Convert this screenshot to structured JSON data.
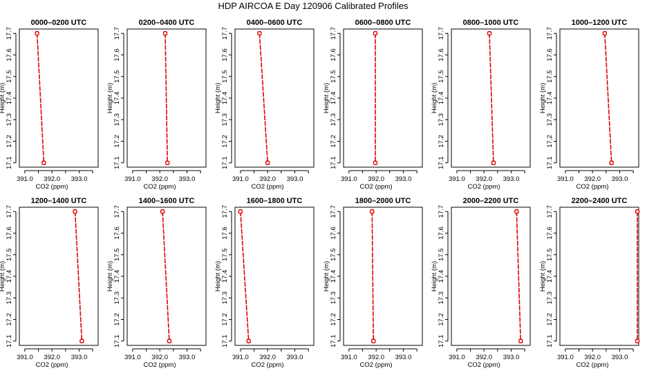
{
  "figure": {
    "title": "HDP AIRCOA E  Day 120906  Calibrated Profiles"
  },
  "colors": {
    "series": "#dd0000",
    "axes": "#000000",
    "background": "#ffffff"
  },
  "chart_data": [
    {
      "type": "line",
      "title": "0000–0200 UTC",
      "xlabel": "CO2 (ppm)",
      "ylabel": "Height (m)",
      "xlim": [
        390.8,
        393.7
      ],
      "ylim": [
        17.08,
        17.72
      ],
      "xticks": [
        "391.0",
        "392.0",
        "393.0"
      ],
      "yticks": [
        "17.1",
        "17.2",
        "17.3",
        "17.4",
        "17.5",
        "17.6",
        "17.7"
      ],
      "series": [
        {
          "x": [
            391.45,
            391.7
          ],
          "y": [
            17.7,
            17.1
          ]
        }
      ],
      "grid": false
    },
    {
      "type": "line",
      "title": "0200–0400 UTC",
      "xlabel": "CO2 (ppm)",
      "ylabel": "Height (m)",
      "xlim": [
        390.8,
        393.7
      ],
      "ylim": [
        17.08,
        17.72
      ],
      "xticks": [
        "391.0",
        "392.0",
        "393.0"
      ],
      "yticks": [
        "17.1",
        "17.2",
        "17.3",
        "17.4",
        "17.5",
        "17.6",
        "17.7"
      ],
      "series": [
        {
          "x": [
            392.2,
            392.28
          ],
          "y": [
            17.7,
            17.1
          ]
        }
      ],
      "grid": false
    },
    {
      "type": "line",
      "title": "0400–0600 UTC",
      "xlabel": "CO2 (ppm)",
      "ylabel": "Height (m)",
      "xlim": [
        390.8,
        393.7
      ],
      "ylim": [
        17.08,
        17.72
      ],
      "xticks": [
        "391.0",
        "392.0",
        "393.0"
      ],
      "yticks": [
        "17.1",
        "17.2",
        "17.3",
        "17.4",
        "17.5",
        "17.6",
        "17.7"
      ],
      "series": [
        {
          "x": [
            391.7,
            392.0
          ],
          "y": [
            17.7,
            17.1
          ]
        }
      ],
      "grid": false
    },
    {
      "type": "line",
      "title": "0600–0800 UTC",
      "xlabel": "CO2 (ppm)",
      "ylabel": "Height (m)",
      "xlim": [
        390.8,
        393.7
      ],
      "ylim": [
        17.08,
        17.72
      ],
      "xticks": [
        "391.0",
        "392.0",
        "393.0"
      ],
      "yticks": [
        "17.1",
        "17.2",
        "17.3",
        "17.4",
        "17.5",
        "17.6",
        "17.7"
      ],
      "series": [
        {
          "x": [
            391.97,
            391.97
          ],
          "y": [
            17.7,
            17.1
          ]
        }
      ],
      "grid": false
    },
    {
      "type": "line",
      "title": "0800–1000 UTC",
      "xlabel": "CO2 (ppm)",
      "ylabel": "Height (m)",
      "xlim": [
        390.8,
        393.7
      ],
      "ylim": [
        17.08,
        17.72
      ],
      "xticks": [
        "391.0",
        "392.0",
        "393.0"
      ],
      "yticks": [
        "17.1",
        "17.2",
        "17.3",
        "17.4",
        "17.5",
        "17.6",
        "17.7"
      ],
      "series": [
        {
          "x": [
            392.2,
            392.35
          ],
          "y": [
            17.7,
            17.1
          ]
        }
      ],
      "grid": false
    },
    {
      "type": "line",
      "title": "1000–1200 UTC",
      "xlabel": "CO2 (ppm)",
      "ylabel": "Height (m)",
      "xlim": [
        390.8,
        393.7
      ],
      "ylim": [
        17.08,
        17.72
      ],
      "xticks": [
        "391.0",
        "392.0",
        "393.0"
      ],
      "yticks": [
        "17.1",
        "17.2",
        "17.3",
        "17.4",
        "17.5",
        "17.6",
        "17.7"
      ],
      "series": [
        {
          "x": [
            392.45,
            392.7
          ],
          "y": [
            17.7,
            17.1
          ]
        }
      ],
      "grid": false
    },
    {
      "type": "line",
      "title": "1200–1400 UTC",
      "xlabel": "CO2 (ppm)",
      "ylabel": "Height (m)",
      "xlim": [
        390.8,
        393.7
      ],
      "ylim": [
        17.08,
        17.72
      ],
      "xticks": [
        "391.0",
        "392.0",
        "393.0"
      ],
      "yticks": [
        "17.1",
        "17.2",
        "17.3",
        "17.4",
        "17.5",
        "17.6",
        "17.7"
      ],
      "series": [
        {
          "x": [
            392.85,
            393.1
          ],
          "y": [
            17.7,
            17.1
          ]
        }
      ],
      "grid": false
    },
    {
      "type": "line",
      "title": "1400–1600 UTC",
      "xlabel": "CO2 (ppm)",
      "ylabel": "Height (m)",
      "xlim": [
        390.8,
        393.7
      ],
      "ylim": [
        17.08,
        17.72
      ],
      "xticks": [
        "391.0",
        "392.0",
        "393.0"
      ],
      "yticks": [
        "17.1",
        "17.2",
        "17.3",
        "17.4",
        "17.5",
        "17.6",
        "17.7"
      ],
      "series": [
        {
          "x": [
            392.1,
            392.35
          ],
          "y": [
            17.7,
            17.1
          ]
        }
      ],
      "grid": false
    },
    {
      "type": "line",
      "title": "1600–1800 UTC",
      "xlabel": "CO2 (ppm)",
      "ylabel": "Height (m)",
      "xlim": [
        390.8,
        393.7
      ],
      "ylim": [
        17.08,
        17.72
      ],
      "xticks": [
        "391.0",
        "392.0",
        "393.0"
      ],
      "yticks": [
        "17.1",
        "17.2",
        "17.3",
        "17.4",
        "17.5",
        "17.6",
        "17.7"
      ],
      "series": [
        {
          "x": [
            391.0,
            391.3
          ],
          "y": [
            17.7,
            17.1
          ]
        }
      ],
      "grid": false
    },
    {
      "type": "line",
      "title": "1800–2000 UTC",
      "xlabel": "CO2 (ppm)",
      "ylabel": "Height (m)",
      "xlim": [
        390.8,
        393.7
      ],
      "ylim": [
        17.08,
        17.72
      ],
      "xticks": [
        "391.0",
        "392.0",
        "393.0"
      ],
      "yticks": [
        "17.1",
        "17.2",
        "17.3",
        "17.4",
        "17.5",
        "17.6",
        "17.7"
      ],
      "series": [
        {
          "x": [
            391.85,
            391.9
          ],
          "y": [
            17.7,
            17.1
          ]
        }
      ],
      "grid": false
    },
    {
      "type": "line",
      "title": "2000–2200 UTC",
      "xlabel": "CO2 (ppm)",
      "ylabel": "Height (m)",
      "xlim": [
        390.8,
        393.7
      ],
      "ylim": [
        17.08,
        17.72
      ],
      "xticks": [
        "391.0",
        "392.0",
        "393.0"
      ],
      "yticks": [
        "17.1",
        "17.2",
        "17.3",
        "17.4",
        "17.5",
        "17.6",
        "17.7"
      ],
      "series": [
        {
          "x": [
            393.2,
            393.35
          ],
          "y": [
            17.7,
            17.1
          ]
        }
      ],
      "grid": false
    },
    {
      "type": "line",
      "title": "2200–2400 UTC",
      "xlabel": "CO2 (ppm)",
      "ylabel": "Height (m)",
      "xlim": [
        390.8,
        393.7
      ],
      "ylim": [
        17.08,
        17.72
      ],
      "xticks": [
        "391.0",
        "392.0",
        "393.0"
      ],
      "yticks": [
        "17.1",
        "17.2",
        "17.3",
        "17.4",
        "17.5",
        "17.6",
        "17.7"
      ],
      "series": [
        {
          "x": [
            393.65,
            393.65
          ],
          "y": [
            17.7,
            17.1
          ]
        }
      ],
      "grid": false
    }
  ]
}
